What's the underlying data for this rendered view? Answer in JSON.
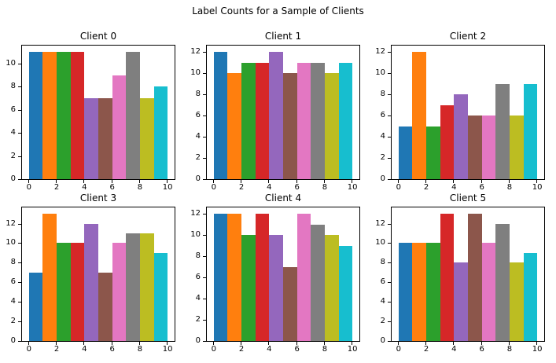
{
  "figure": {
    "suptitle": "Label Counts for a Sample of Clients",
    "background": "#ffffff",
    "palette_tab10": [
      "#1f77b4",
      "#ff7f0e",
      "#2ca02c",
      "#d62728",
      "#9467bd",
      "#8c564b",
      "#e377c2",
      "#7f7f7f",
      "#bcbd22",
      "#17becf"
    ]
  },
  "chart_data": [
    {
      "type": "bar",
      "title": "Client 0",
      "categories": [
        0,
        1,
        2,
        3,
        4,
        5,
        6,
        7,
        8,
        9
      ],
      "values": [
        11,
        11,
        11,
        11,
        7,
        7,
        9,
        11,
        7,
        8
      ],
      "xticks": [
        0,
        2,
        4,
        6,
        8,
        10
      ],
      "yticks": [
        0,
        2,
        4,
        6,
        8,
        10
      ],
      "xlim": [
        -0.5,
        10.5
      ],
      "ylim": [
        0,
        11.55
      ],
      "bar_span": [
        0,
        10
      ],
      "xlabel": "",
      "ylabel": "",
      "grid": false,
      "legend": false
    },
    {
      "type": "bar",
      "title": "Client 1",
      "categories": [
        0,
        1,
        2,
        3,
        4,
        5,
        6,
        7,
        8,
        9
      ],
      "values": [
        12,
        10,
        11,
        11,
        12,
        10,
        11,
        11,
        10,
        11
      ],
      "xticks": [
        0,
        2,
        4,
        6,
        8,
        10
      ],
      "yticks": [
        0,
        2,
        4,
        6,
        8,
        10,
        12
      ],
      "xlim": [
        -0.5,
        10.5
      ],
      "ylim": [
        0,
        12.6
      ],
      "bar_span": [
        0,
        10
      ],
      "xlabel": "",
      "ylabel": "",
      "grid": false,
      "legend": false
    },
    {
      "type": "bar",
      "title": "Client 2",
      "categories": [
        0,
        1,
        2,
        3,
        4,
        5,
        6,
        7,
        8,
        9
      ],
      "values": [
        5,
        12,
        5,
        7,
        8,
        6,
        6,
        9,
        6,
        9
      ],
      "xticks": [
        0,
        2,
        4,
        6,
        8,
        10
      ],
      "yticks": [
        0,
        2,
        4,
        6,
        8,
        10,
        12
      ],
      "xlim": [
        -0.5,
        10.5
      ],
      "ylim": [
        0,
        12.6
      ],
      "bar_span": [
        0,
        10
      ],
      "xlabel": "",
      "ylabel": "",
      "grid": false,
      "legend": false
    },
    {
      "type": "bar",
      "title": "Client 3",
      "categories": [
        0,
        1,
        2,
        3,
        4,
        5,
        6,
        7,
        8,
        9
      ],
      "values": [
        7,
        13,
        10,
        10,
        12,
        7,
        10,
        11,
        11,
        9
      ],
      "xticks": [
        0,
        2,
        4,
        6,
        8,
        10
      ],
      "yticks": [
        0,
        2,
        4,
        6,
        8,
        10,
        12
      ],
      "xlim": [
        -0.5,
        10.5
      ],
      "ylim": [
        0,
        13.65
      ],
      "bar_span": [
        0,
        10
      ],
      "xlabel": "",
      "ylabel": "",
      "grid": false,
      "legend": false
    },
    {
      "type": "bar",
      "title": "Client 4",
      "categories": [
        0,
        1,
        2,
        3,
        4,
        5,
        6,
        7,
        8,
        9
      ],
      "values": [
        12,
        12,
        10,
        12,
        10,
        7,
        12,
        11,
        10,
        9
      ],
      "xticks": [
        0,
        2,
        4,
        6,
        8,
        10
      ],
      "yticks": [
        0,
        2,
        4,
        6,
        8,
        10,
        12
      ],
      "xlim": [
        -0.5,
        10.5
      ],
      "ylim": [
        0,
        12.6
      ],
      "bar_span": [
        0,
        10
      ],
      "xlabel": "",
      "ylabel": "",
      "grid": false,
      "legend": false
    },
    {
      "type": "bar",
      "title": "Client 5",
      "categories": [
        0,
        1,
        2,
        3,
        4,
        5,
        6,
        7,
        8,
        9
      ],
      "values": [
        10,
        10,
        10,
        13,
        8,
        13,
        10,
        12,
        8,
        9
      ],
      "xticks": [
        0,
        2,
        4,
        6,
        8,
        10
      ],
      "yticks": [
        0,
        2,
        4,
        6,
        8,
        10,
        12
      ],
      "xlim": [
        -0.5,
        10.5
      ],
      "ylim": [
        0,
        13.65
      ],
      "bar_span": [
        0,
        10
      ],
      "xlabel": "",
      "ylabel": "",
      "grid": false,
      "legend": false
    }
  ]
}
